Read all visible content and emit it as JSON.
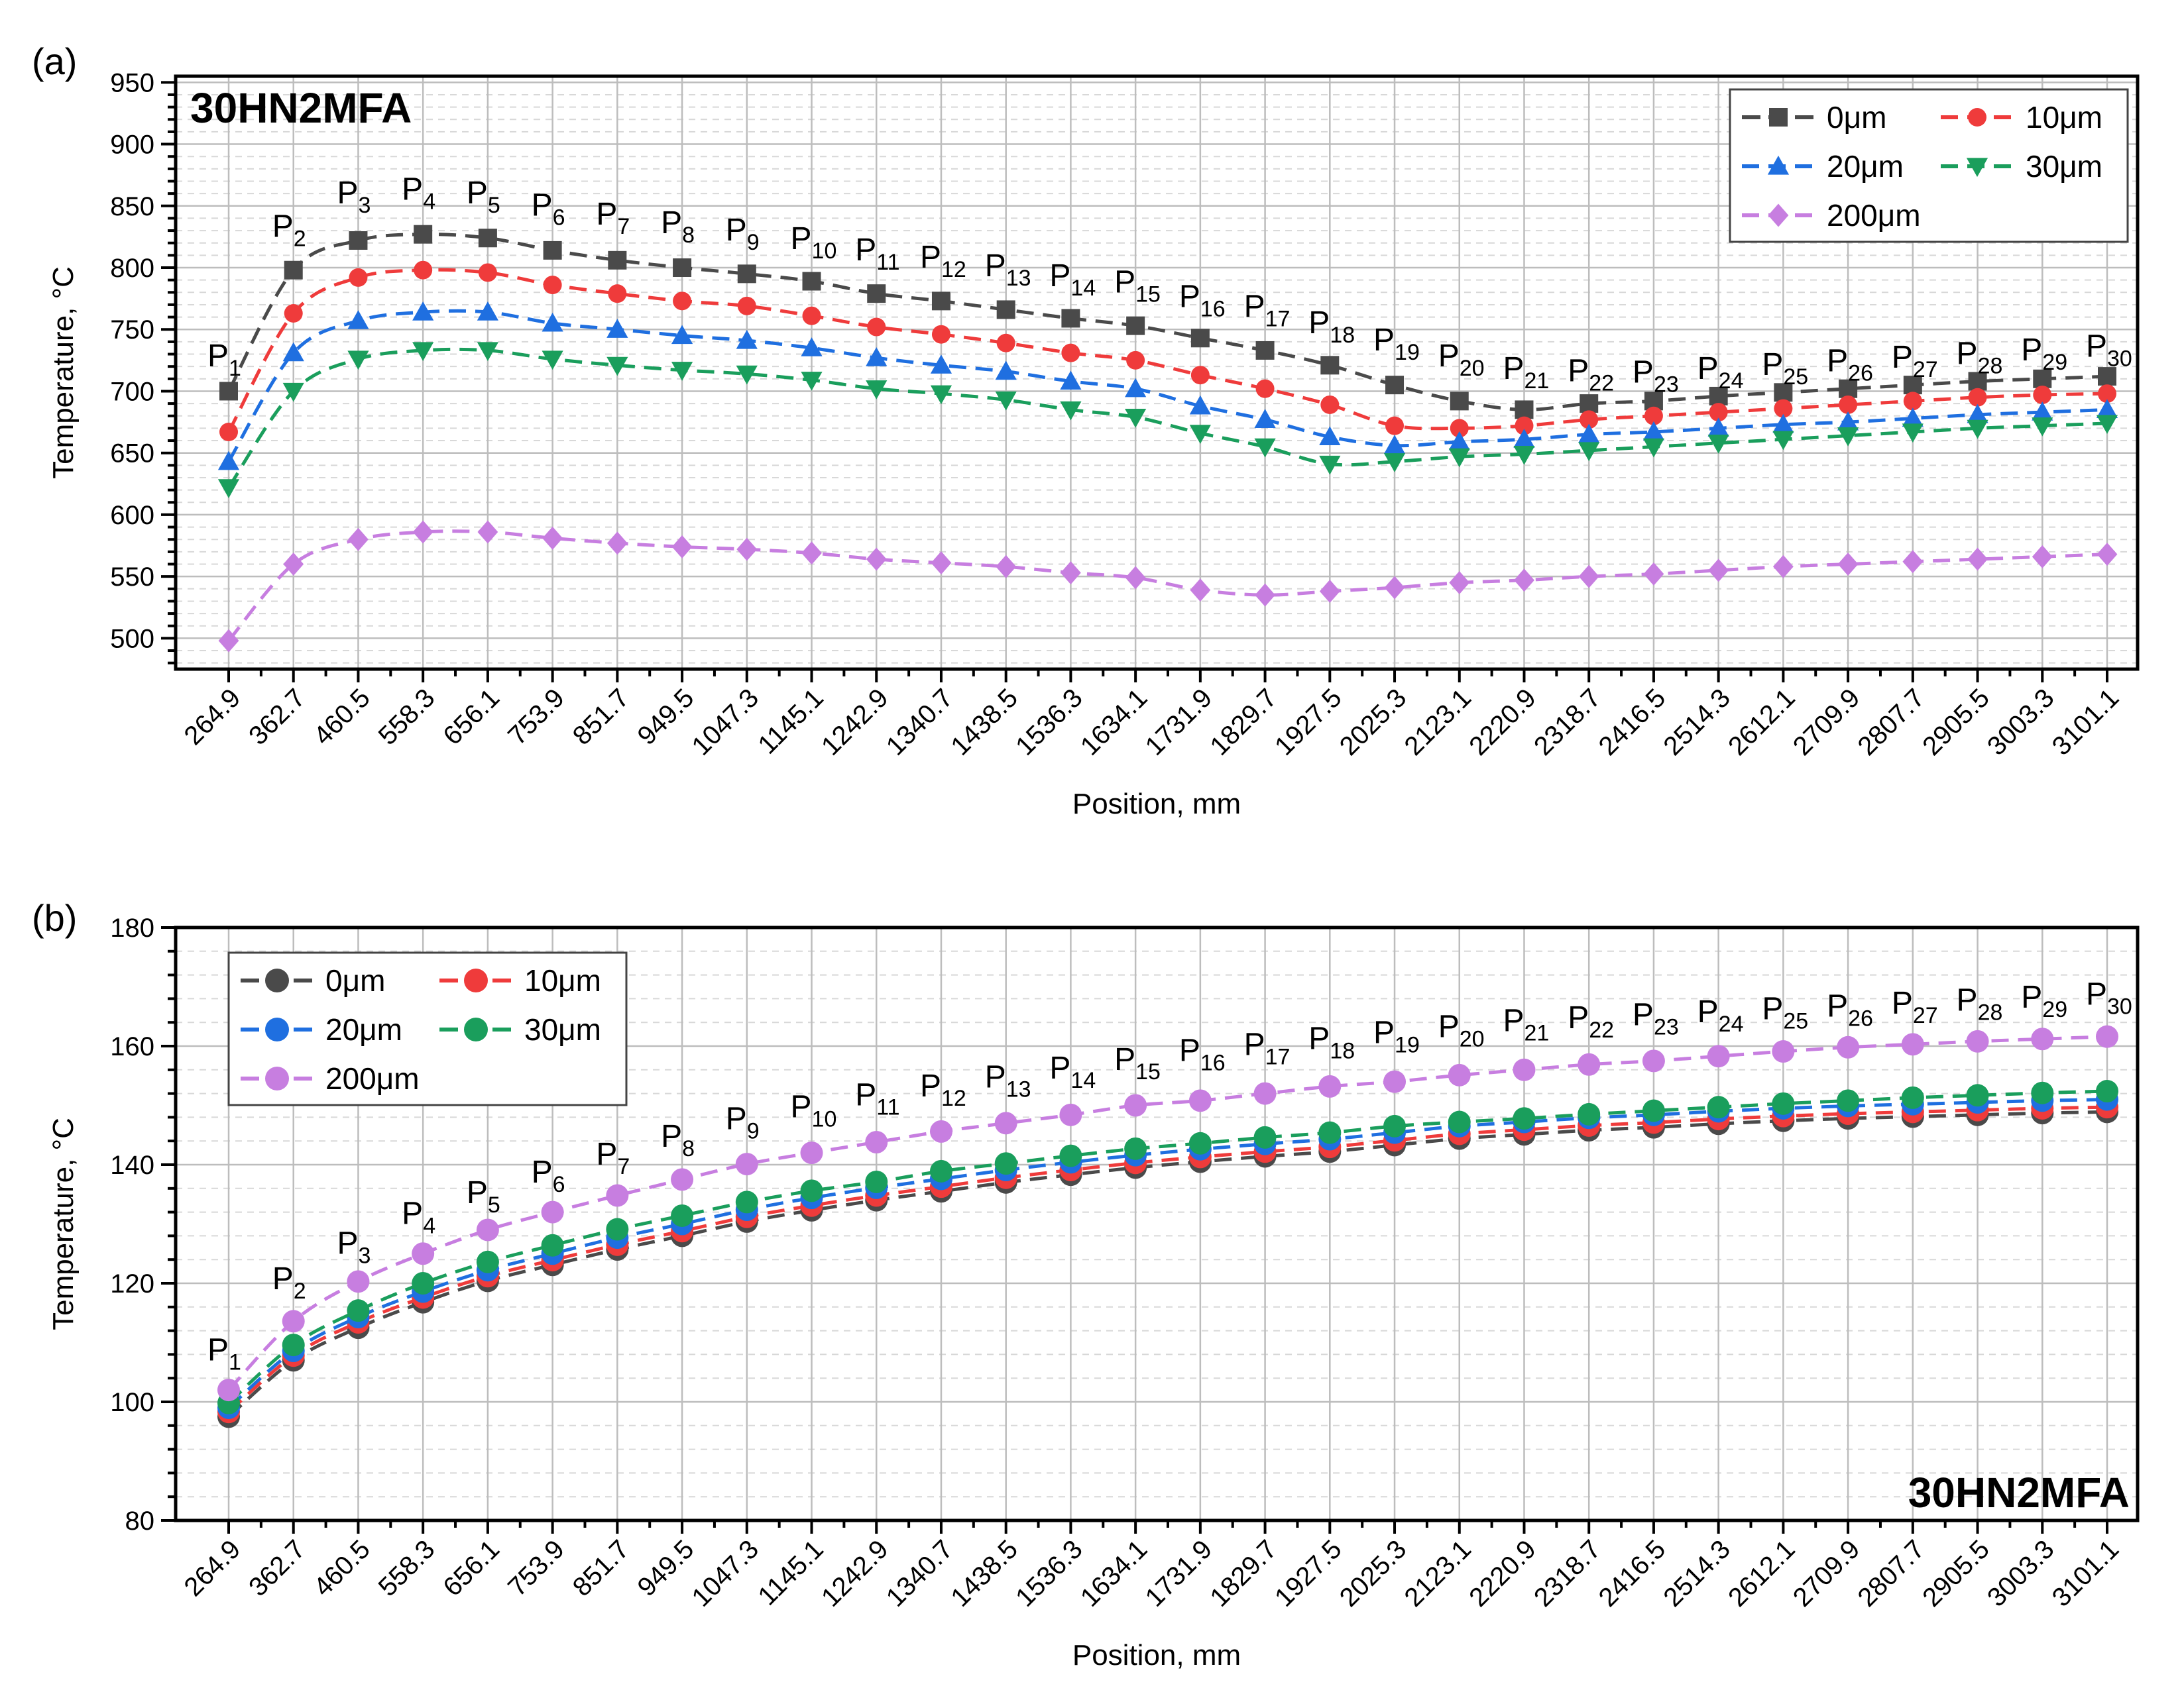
{
  "chart_data": [
    {
      "type": "line",
      "panel_label": "(a)",
      "inset_title": "30HN2MFA",
      "xlabel": "Position, mm",
      "ylabel": "Temperature, °C",
      "ylim": [
        475,
        955
      ],
      "yticks": [
        500,
        550,
        600,
        650,
        700,
        750,
        800,
        850,
        900,
        950
      ],
      "grid": true,
      "legend_position": "top-right",
      "categories": [
        "264.9",
        "362.7",
        "460.5",
        "558.3",
        "656.1",
        "753.9",
        "851.7",
        "949.5",
        "1047.3",
        "1145.1",
        "1242.9",
        "1340.7",
        "1438.5",
        "1536.3",
        "1634.1",
        "1731.9",
        "1829.7",
        "1927.5",
        "2025.3",
        "2123.1",
        "2220.9",
        "2318.7",
        "2416.5",
        "2514.3",
        "2612.1",
        "2709.9",
        "2807.7",
        "2905.5",
        "3003.3",
        "3101.1"
      ],
      "point_labels": [
        "1",
        "2",
        "3",
        "4",
        "5",
        "6",
        "7",
        "8",
        "9",
        "10",
        "11",
        "12",
        "13",
        "14",
        "15",
        "16",
        "17",
        "18",
        "19",
        "20",
        "21",
        "22",
        "23",
        "24",
        "25",
        "26",
        "27",
        "28",
        "29",
        "30"
      ],
      "point_label_prefix": "P",
      "point_label_values": [
        720,
        825,
        852,
        855,
        852,
        842,
        835,
        828,
        822,
        815,
        806,
        800,
        793,
        785,
        780,
        768,
        760,
        747,
        733,
        720,
        710,
        708,
        707,
        710,
        713,
        716,
        719,
        722,
        725,
        728
      ],
      "series": [
        {
          "name": "0μm",
          "color": "#4a4a4a",
          "marker": "square",
          "values": [
            700,
            798,
            822,
            827,
            824,
            814,
            806,
            800,
            795,
            789,
            779,
            773,
            766,
            759,
            753,
            743,
            733,
            721,
            705,
            692,
            685,
            690,
            692,
            696,
            699,
            702,
            705,
            708,
            710,
            712
          ]
        },
        {
          "name": "10μm",
          "color": "#ef3b3b",
          "marker": "circle",
          "values": [
            667,
            763,
            792,
            798,
            796,
            786,
            779,
            773,
            769,
            761,
            752,
            746,
            739,
            731,
            725,
            713,
            702,
            689,
            672,
            670,
            672,
            677,
            680,
            683,
            686,
            689,
            692,
            695,
            697,
            698
          ]
        },
        {
          "name": "20μm",
          "color": "#1f6fe0",
          "marker": "triangle-up",
          "values": [
            643,
            731,
            757,
            764,
            764,
            755,
            750,
            745,
            741,
            735,
            727,
            721,
            716,
            708,
            702,
            688,
            677,
            663,
            656,
            659,
            661,
            665,
            667,
            670,
            673,
            675,
            678,
            681,
            683,
            685
          ]
        },
        {
          "name": "30μm",
          "color": "#1a9e5c",
          "marker": "triangle-down",
          "values": [
            622,
            700,
            726,
            733,
            733,
            726,
            721,
            717,
            714,
            709,
            702,
            698,
            693,
            685,
            679,
            666,
            655,
            641,
            643,
            647,
            649,
            652,
            655,
            658,
            661,
            664,
            667,
            670,
            672,
            674
          ]
        },
        {
          "name": "200μm",
          "color": "#c77ee0",
          "marker": "diamond",
          "values": [
            498,
            560,
            580,
            586,
            586,
            581,
            577,
            574,
            572,
            569,
            564,
            561,
            558,
            553,
            549,
            539,
            535,
            538,
            541,
            545,
            547,
            550,
            552,
            555,
            558,
            560,
            562,
            564,
            566,
            568
          ]
        }
      ]
    },
    {
      "type": "line",
      "panel_label": "(b)",
      "inset_title": "30HN2MFA",
      "xlabel": "Position, mm",
      "ylabel": "Temperature, °C",
      "ylim": [
        80,
        180
      ],
      "yticks": [
        80,
        100,
        120,
        140,
        160,
        180
      ],
      "grid": true,
      "legend_position": "top-left",
      "categories": [
        "264.9",
        "362.7",
        "460.5",
        "558.3",
        "656.1",
        "753.9",
        "851.7",
        "949.5",
        "1047.3",
        "1145.1",
        "1242.9",
        "1340.7",
        "1438.5",
        "1536.3",
        "1634.1",
        "1731.9",
        "1829.7",
        "1927.5",
        "2025.3",
        "2123.1",
        "2220.9",
        "2318.7",
        "2416.5",
        "2514.3",
        "2612.1",
        "2709.9",
        "2807.7",
        "2905.5",
        "3003.3",
        "3101.1"
      ],
      "point_labels": [
        "1",
        "2",
        "3",
        "4",
        "5",
        "6",
        "7",
        "8",
        "9",
        "10",
        "11",
        "12",
        "13",
        "14",
        "15",
        "16",
        "17",
        "18",
        "19",
        "20",
        "21",
        "22",
        "23",
        "24",
        "25",
        "26",
        "27",
        "28",
        "29",
        "30"
      ],
      "point_label_prefix": "P",
      "point_label_values": [
        107,
        119,
        125,
        130,
        133.5,
        137,
        140,
        143,
        146,
        148,
        150,
        151.5,
        153,
        154.5,
        156,
        157.5,
        158.5,
        159.5,
        160.5,
        161.5,
        162.5,
        163,
        163.5,
        164,
        164.5,
        165,
        165.5,
        166,
        166.5,
        167
      ],
      "series": [
        {
          "name": "0μm",
          "color": "#4a4a4a",
          "marker": "circle",
          "values": [
            97.5,
            107,
            112.5,
            116.8,
            120.4,
            123.1,
            125.7,
            128,
            130.4,
            132.3,
            134,
            135.5,
            137,
            138.3,
            139.5,
            140.5,
            141.4,
            142.2,
            143.3,
            144.4,
            145.1,
            145.8,
            146.3,
            146.9,
            147.4,
            147.8,
            148.1,
            148.4,
            148.7,
            148.9
          ]
        },
        {
          "name": "10μm",
          "color": "#ef3b3b",
          "marker": "circle",
          "values": [
            98.3,
            107.8,
            113.4,
            117.6,
            121.2,
            123.9,
            126.5,
            128.8,
            131.2,
            133.1,
            134.8,
            136.3,
            137.8,
            139.1,
            140.3,
            141.3,
            142.2,
            143,
            144.1,
            145.2,
            145.9,
            146.6,
            147.1,
            147.7,
            148.2,
            148.6,
            148.9,
            149.2,
            149.5,
            149.7
          ]
        },
        {
          "name": "20μm",
          "color": "#1f6fe0",
          "marker": "circle",
          "values": [
            99,
            108.6,
            114.3,
            118.6,
            122.2,
            125,
            127.7,
            130,
            132.4,
            134.4,
            136.1,
            137.6,
            139.1,
            140.4,
            141.6,
            142.6,
            143.5,
            144.3,
            145.4,
            146.5,
            147.2,
            147.9,
            148.4,
            149,
            149.5,
            149.9,
            150.2,
            150.5,
            150.8,
            151
          ]
        },
        {
          "name": "30μm",
          "color": "#1a9e5c",
          "marker": "circle",
          "values": [
            99.8,
            109.6,
            115.4,
            120,
            123.6,
            126.4,
            129.1,
            131.4,
            133.7,
            135.6,
            137.1,
            138.9,
            140.2,
            141.5,
            142.7,
            143.6,
            144.6,
            145.4,
            146.5,
            147.2,
            147.8,
            148.5,
            149.1,
            149.7,
            150.3,
            150.8,
            151.3,
            151.7,
            152.1,
            152.4
          ]
        },
        {
          "name": "200μm",
          "color": "#c77ee0",
          "marker": "circle",
          "values": [
            102,
            113.6,
            120.3,
            125,
            129,
            132,
            134.8,
            137.5,
            140.1,
            142,
            143.8,
            145.6,
            147,
            148.4,
            150,
            150.8,
            152,
            153.2,
            154,
            155.1,
            156,
            156.9,
            157.5,
            158.3,
            159.1,
            159.8,
            160.3,
            160.8,
            161.2,
            161.6
          ]
        }
      ]
    }
  ]
}
